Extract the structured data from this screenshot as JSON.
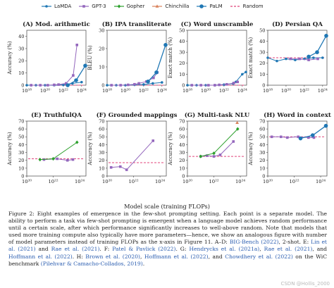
{
  "legend": [
    {
      "name": "LaMDA",
      "color": "#1f77b4",
      "marker": "circle"
    },
    {
      "name": "GPT-3",
      "color": "#9467bd",
      "marker": "square"
    },
    {
      "name": "Gopher",
      "color": "#2ca02c",
      "marker": "diamond"
    },
    {
      "name": "Chinchilla",
      "color": "#d9825b",
      "marker": "triangle"
    },
    {
      "name": "PaLM",
      "color": "#1f77b4",
      "marker": "bigcircle"
    },
    {
      "name": "Random",
      "color": "#e0457b",
      "marker": "dash"
    }
  ],
  "xlabel": "Model scale (training FLOPs)",
  "chart_data": [
    {
      "type": "line",
      "title": "(A) Mod. arithmetic",
      "ylabel": "Accuracy (%)",
      "xscale": "log",
      "xlim": [
        1e+18,
        3e+24
      ],
      "ylim": [
        0,
        45
      ],
      "yticks": [
        0,
        10,
        20,
        30,
        40
      ],
      "xticks": [
        1e+18,
        1e+20,
        1e+22,
        1e+24
      ],
      "xtick_labels": [
        "10¹⁸",
        "10²⁰",
        "10²²",
        "10²⁴"
      ],
      "random": 0,
      "series": [
        {
          "name": "LaMDA",
          "x": [
            1e+18,
            1e+19,
            1e+20,
            1e+21,
            1e+22,
            1e+23,
            1e+24
          ],
          "y": [
            0,
            0,
            0,
            0,
            0.3,
            1.5,
            2.5
          ]
        },
        {
          "name": "GPT-3",
          "x": [
            3e+18,
            3e+19,
            2e+20,
            1e+21,
            3e+21,
            2e+22,
            1.2e+23,
            3.1e+23
          ],
          "y": [
            0,
            0,
            0,
            0.3,
            0.5,
            1.5,
            8,
            33
          ]
        },
        {
          "name": "PaLM",
          "x": [
            3e+22,
            2.5e+23,
            2.5e+24
          ],
          "y": [
            0,
            4,
            16
          ]
        }
      ]
    },
    {
      "type": "line",
      "title": "(B) IPA transliterate",
      "ylabel": "BLEU (%)",
      "xscale": "log",
      "xlim": [
        1e+18,
        3e+24
      ],
      "ylim": [
        0,
        30
      ],
      "yticks": [
        0,
        10,
        20,
        30
      ],
      "xticks": [
        1e+18,
        1e+20,
        1e+22,
        1e+24
      ],
      "xtick_labels": [
        "10¹⁸",
        "10²⁰",
        "10²²",
        "10²⁴"
      ],
      "random": 0,
      "series": [
        {
          "name": "LaMDA",
          "x": [
            1e+18,
            1e+19,
            1e+20,
            1e+21,
            1e+22,
            1e+23,
            1e+24
          ],
          "y": [
            0,
            0,
            0,
            0.2,
            0.4,
            1,
            1.5
          ]
        },
        {
          "name": "GPT-3",
          "x": [
            3e+18,
            3e+19,
            2e+20,
            1e+21,
            3e+21,
            2e+22,
            1.2e+23,
            3.1e+23
          ],
          "y": [
            0,
            0,
            0.2,
            0.5,
            1,
            2,
            4,
            7
          ]
        },
        {
          "name": "PaLM",
          "x": [
            3e+22,
            2.5e+23,
            2.5e+24
          ],
          "y": [
            2,
            7,
            22
          ]
        }
      ]
    },
    {
      "type": "line",
      "title": "(C) Word unscramble",
      "ylabel": "Exact match (%)",
      "xscale": "log",
      "xlim": [
        1e+18,
        3e+24
      ],
      "ylim": [
        0,
        50
      ],
      "yticks": [
        0,
        10,
        20,
        30,
        40,
        50
      ],
      "xticks": [
        1e+18,
        1e+20,
        1e+22,
        1e+24
      ],
      "xtick_labels": [
        "10¹⁸",
        "10²⁰",
        "10²²",
        "10²⁴"
      ],
      "random": 0,
      "series": [
        {
          "name": "LaMDA",
          "x": [
            1e+18,
            1e+19,
            1e+20,
            1e+21,
            1e+22,
            1e+23,
            2e+23,
            1e+24,
            2.5e+24
          ],
          "y": [
            0,
            0,
            0,
            0,
            0.5,
            1.5,
            3,
            10,
            12
          ]
        },
        {
          "name": "GPT-3",
          "x": [
            3e+18,
            3e+19,
            2e+20,
            1e+21,
            3e+21,
            2e+22,
            1.2e+23,
            3.1e+23
          ],
          "y": [
            0,
            0,
            0,
            0,
            0.3,
            0.8,
            2,
            3
          ]
        }
      ]
    },
    {
      "type": "line",
      "title": "(D) Persian QA",
      "ylabel": "Exact match (%)",
      "xscale": "log",
      "xlim": [
        1e+18,
        3e+24
      ],
      "ylim": [
        0,
        50
      ],
      "yticks": [
        0,
        10,
        20,
        30,
        40,
        50
      ],
      "xticks": [
        1e+18,
        1e+20,
        1e+22,
        1e+24
      ],
      "xtick_labels": [
        "10¹⁸",
        "10²⁰",
        "10²²",
        "10²⁴"
      ],
      "random": 25,
      "series": [
        {
          "name": "LaMDA",
          "x": [
            1e+18,
            1e+19,
            1e+20,
            1e+21,
            1e+22,
            1e+23,
            1e+24
          ],
          "y": [
            25,
            22,
            24,
            23,
            24,
            25,
            25
          ]
        },
        {
          "name": "GPT-3",
          "x": [
            3e+20,
            3e+21,
            3e+22,
            3e+23
          ],
          "y": [
            24,
            24,
            23,
            24
          ]
        },
        {
          "name": "PaLM",
          "x": [
            3e+22,
            2.5e+23,
            2.5e+24
          ],
          "y": [
            26,
            30,
            45
          ]
        }
      ]
    },
    {
      "type": "line",
      "title": "(E) TruthfulQA",
      "ylabel": "Accuracy (%)",
      "xscale": "log",
      "xlim": [
        1e+20,
        3e+24
      ],
      "ylim": [
        0,
        70
      ],
      "yticks": [
        0,
        10,
        20,
        30,
        40,
        50,
        60,
        70
      ],
      "xticks": [
        1e+20,
        1e+22,
        1e+24
      ],
      "xtick_labels": [
        "10²⁰",
        "10²²",
        "10²⁴"
      ],
      "random": 22,
      "series": [
        {
          "name": "GPT-3",
          "x": [
            2e+21,
            2e+22,
            1.2e+23,
            3.1e+23
          ],
          "y": [
            21,
            22,
            20,
            21
          ]
        },
        {
          "name": "Gopher",
          "x": [
            1e+21,
            1e+22,
            6.3e+23
          ],
          "y": [
            21,
            22,
            43
          ]
        }
      ]
    },
    {
      "type": "line",
      "title": "(F) Grounded mappings",
      "ylabel": "Accuracy (%)",
      "xscale": "log",
      "xlim": [
        1e+20,
        3e+24
      ],
      "ylim": [
        0,
        70
      ],
      "yticks": [
        0,
        10,
        20,
        30,
        40,
        50,
        60,
        70
      ],
      "xticks": [
        1e+20,
        1e+22,
        1e+24
      ],
      "xtick_labels": [
        "10²⁰",
        "10²²",
        "10²⁴"
      ],
      "random": 17,
      "series": [
        {
          "name": "GPT-3",
          "x": [
            2e+20,
            1e+21,
            3e+21,
            3e+23
          ],
          "y": [
            11,
            12,
            8,
            45
          ]
        }
      ]
    },
    {
      "type": "line",
      "title": "(G) Multi-task NLU",
      "ylabel": "Accuracy (%)",
      "xscale": "log",
      "xlim": [
        1e+20,
        3e+24
      ],
      "ylim": [
        0,
        70
      ],
      "yticks": [
        0,
        10,
        20,
        30,
        40,
        50,
        60,
        70
      ],
      "xticks": [
        1e+20,
        1e+22,
        1e+24
      ],
      "xtick_labels": [
        "10²⁰",
        "10²²",
        "10²⁴"
      ],
      "random": 25,
      "series": [
        {
          "name": "GPT-3",
          "x": [
            1e+21,
            3e+21,
            1e+22,
            3e+22,
            3e+23
          ],
          "y": [
            25,
            26,
            25,
            27,
            44
          ]
        },
        {
          "name": "Gopher",
          "x": [
            1e+21,
            1e+22,
            6.3e+23
          ],
          "y": [
            25,
            29,
            60
          ]
        },
        {
          "name": "Chinchilla",
          "x": [
            5.8e+23
          ],
          "y": [
            68
          ]
        }
      ]
    },
    {
      "type": "line",
      "title": "(H) Word in context",
      "ylabel": "Accuracy (%)",
      "xscale": "log",
      "xlim": [
        1e+20,
        3e+24
      ],
      "ylim": [
        0,
        70
      ],
      "yticks": [
        0,
        10,
        20,
        30,
        40,
        50,
        60,
        70
      ],
      "xticks": [
        1e+20,
        1e+22,
        1e+24
      ],
      "xtick_labels": [
        "10²⁰",
        "10²²",
        "10²⁴"
      ],
      "random": 50,
      "series": [
        {
          "name": "GPT-3",
          "x": [
            2e+20,
            1e+21,
            3e+21,
            2e+22,
            1.2e+23,
            3.1e+23
          ],
          "y": [
            50,
            50,
            49,
            50,
            49,
            49
          ]
        },
        {
          "name": "PaLM",
          "x": [
            3e+22,
            2.5e+23,
            2.5e+24
          ],
          "y": [
            48,
            52,
            64
          ]
        }
      ]
    }
  ],
  "caption": {
    "p1": "Figure 2: Eight examples of emergence in the few-shot prompting setting. Each point is a separate model. The ability to perform a task via few-shot prompting is emergent when a language model achieves random performance until a certain scale, after which performance significantly increases to well-above random. Note that models that used more training compute also typically have more parameters—hence, we show an analogous figure with number of model parameters instead of training FLOPs as the x-axis in Figure 11. A–D:",
    "c1": "BIG-Bench (2022)",
    "p2": ", 2-shot. E:",
    "c2": "Lin et al. (2021)",
    "p3": "and",
    "c3": "Rae et al. (2021)",
    "p4": ". F:",
    "c4": "Patel & Pavlick (2022)",
    "p5": ". G:",
    "c5": "Hendrycks et al. (2021a)",
    "p6": ",",
    "c6": "Rae et al. (2021)",
    "p7": ", and",
    "c7": "Hoffmann et al. (2022)",
    "p8": ". H:",
    "c8": "Brown et al. (2020)",
    "p9": ",",
    "c9": "Hoffmann et al. (2022)",
    "p10": ", and",
    "c10": "Chowdhery et al. (2022)",
    "p11": "on the WiC benchmark",
    "c11": "(Pilehvar & Camacho-Collados, 2019)",
    "p12": "."
  },
  "watermark": "CSDN @Hollis_2000"
}
